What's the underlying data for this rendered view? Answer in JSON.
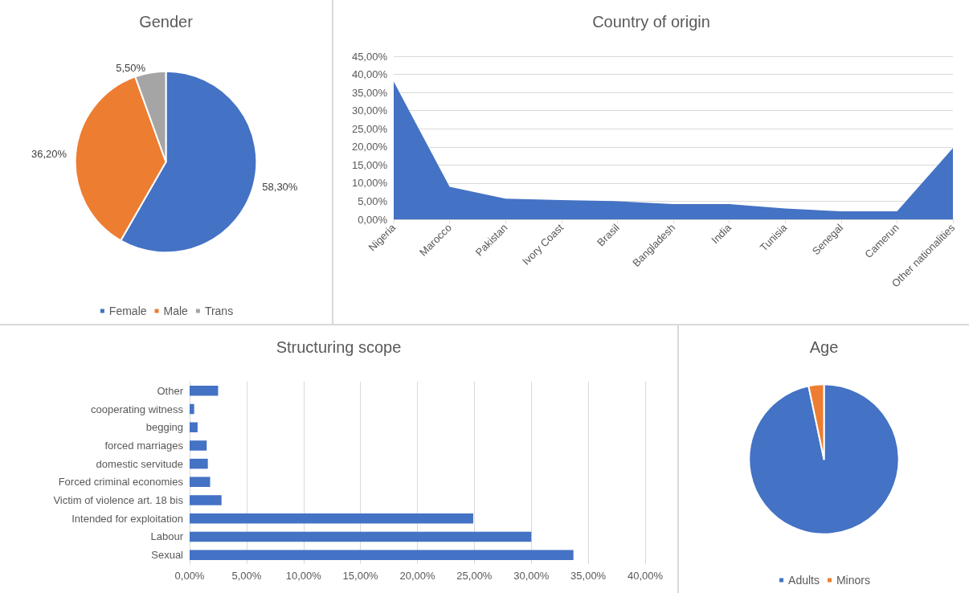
{
  "chart_data": [
    {
      "type": "pie",
      "title": "Gender",
      "categories": [
        "Female",
        "Male",
        "Trans"
      ],
      "values": [
        58.3,
        36.2,
        5.5
      ],
      "colors": [
        "#4472c4",
        "#ed7d31",
        "#a5a5a5"
      ],
      "value_labels": [
        "58,30%",
        "36,20%",
        "5,50%"
      ],
      "legend": "bottom"
    },
    {
      "type": "area",
      "title": "Country of origin",
      "categories": [
        "Nigeria",
        "Marocco",
        "Pakistan",
        "Ivory Coast",
        "Brasil",
        "Bangladesh",
        "India",
        "Tunisia",
        "Senegal",
        "Camerun",
        "Other nationalities"
      ],
      "series": [
        {
          "color": "#4472c4",
          "values": [
            38,
            9,
            5.7,
            5.3,
            5,
            4.2,
            4.2,
            3,
            2.2,
            2.2,
            19.7
          ]
        }
      ],
      "ylim": [
        0,
        45
      ],
      "yticks": [
        {
          "value": 0,
          "label": "0,00%"
        },
        {
          "value": 5,
          "label": "5,00%"
        },
        {
          "value": 10,
          "label": "10,00%"
        },
        {
          "value": 15,
          "label": "15,00%"
        },
        {
          "value": 20,
          "label": "20,00%"
        },
        {
          "value": 25,
          "label": "25,00%"
        },
        {
          "value": 30,
          "label": "30,00%"
        },
        {
          "value": 35,
          "label": "35,00%"
        },
        {
          "value": 40,
          "label": "40,00%"
        },
        {
          "value": 45,
          "label": "45,00%"
        }
      ],
      "grid": "y",
      "legend": false
    },
    {
      "type": "bar",
      "orientation": "horizontal",
      "title": "Structuring scope",
      "categories": [
        "Other",
        "cooperating witness",
        "begging",
        "forced marriages",
        "domestic servitude",
        "Forced criminal economies",
        "Victim of violence art. 18 bis",
        "Intended for exploitation",
        "Labour",
        "Sexual"
      ],
      "series": [
        {
          "color": "#4472c4",
          "values": [
            2.5,
            0.4,
            0.7,
            1.5,
            1.6,
            1.8,
            2.8,
            24.9,
            30,
            33.7
          ]
        }
      ],
      "xlim": [
        0,
        40
      ],
      "xticks": [
        {
          "value": 0,
          "label": "0,00%"
        },
        {
          "value": 5,
          "label": "5,00%"
        },
        {
          "value": 10,
          "label": "10,00%"
        },
        {
          "value": 15,
          "label": "15,00%"
        },
        {
          "value": 20,
          "label": "20,00%"
        },
        {
          "value": 25,
          "label": "25,00%"
        },
        {
          "value": 30,
          "label": "30,00%"
        },
        {
          "value": 35,
          "label": "35,00%"
        },
        {
          "value": 40,
          "label": "40,00%"
        }
      ],
      "grid": "x",
      "legend": false
    },
    {
      "type": "pie",
      "title": "Age",
      "categories": [
        "Adults",
        "Minors"
      ],
      "values": [
        96.7,
        3.3
      ],
      "colors": [
        "#4472c4",
        "#ed7d31"
      ],
      "legend": "bottom"
    }
  ]
}
